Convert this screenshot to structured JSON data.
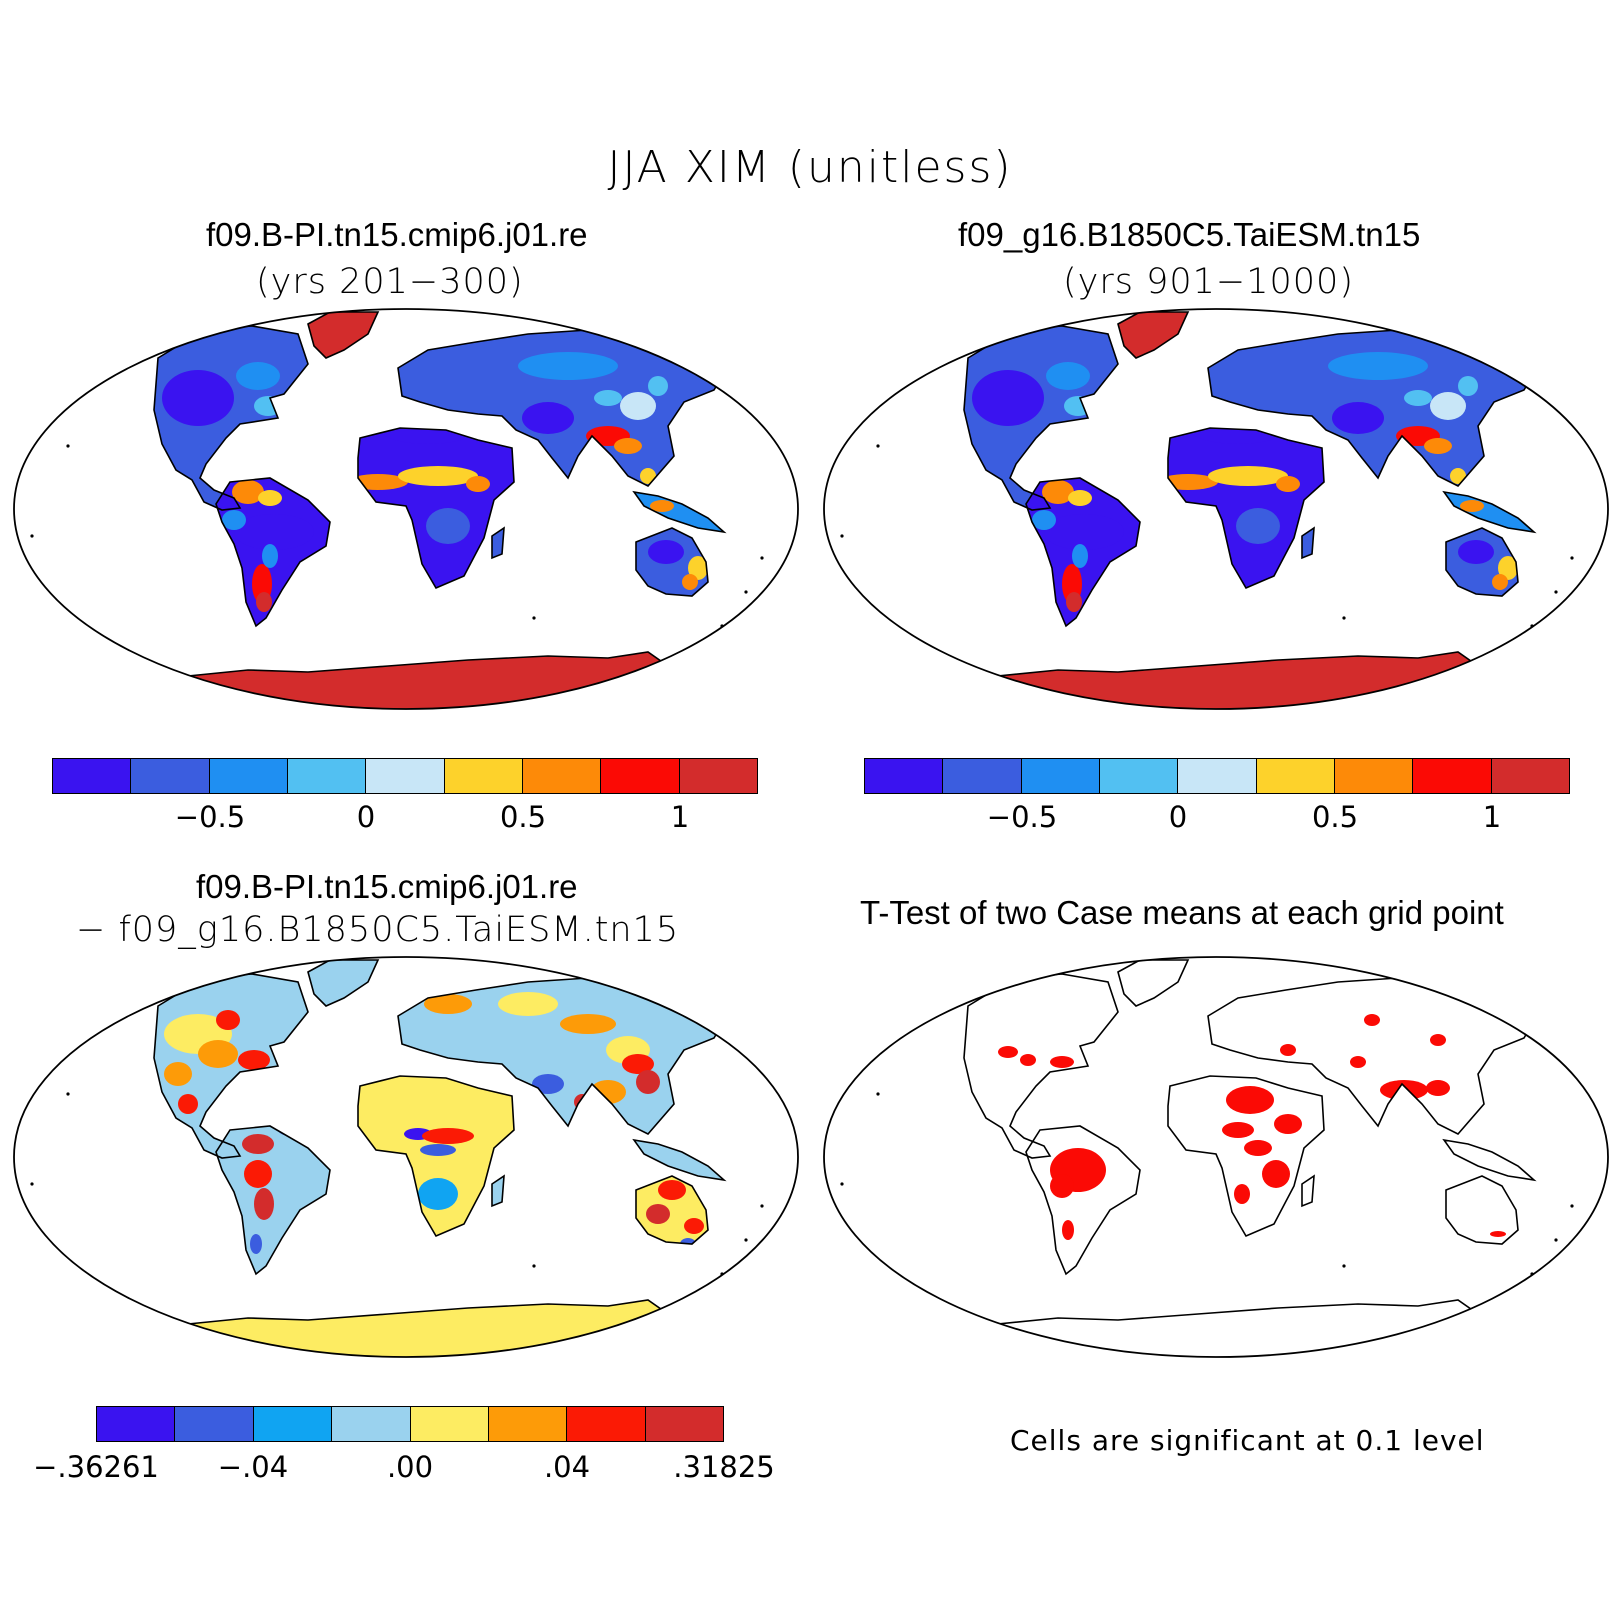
{
  "title": "JJA XIM (unitless)",
  "panels": [
    {
      "title": "f09.B-PI.tn15.cmip6.j01.re",
      "subtitle": "(yrs 201−300)",
      "palette": "abs"
    },
    {
      "title": "f09_g16.B1850C5.TaiESM.tn15",
      "subtitle": "(yrs 901−1000)",
      "palette": "abs"
    },
    {
      "title": "f09.B-PI.tn15.cmip6.j01.re",
      "subtitle": "− f09_g16.B1850C5.TaiESM.tn15",
      "palette": "diff"
    },
    {
      "title": "T-Test of two Case means at each grid point",
      "subtitle": "",
      "palette": "ttest"
    }
  ],
  "colorbar_abs": {
    "colors": [
      "#3a13f0",
      "#3b5ddf",
      "#1f8ff2",
      "#52c0f2",
      "#c8e6f7",
      "#fdd22b",
      "#fd8a08",
      "#fb0a05",
      "#d32c2c"
    ],
    "ticks": [
      "−0.5",
      "0",
      "0.5",
      "1"
    ]
  },
  "colorbar_diff": {
    "colors": [
      "#3a13f0",
      "#3b5ddf",
      "#10a4f2",
      "#9ad2ee",
      "#fdec62",
      "#fd9b08",
      "#fb1a05",
      "#d32c2c"
    ],
    "ticks": [
      "−.36261",
      "−.04",
      ".00",
      ".04",
      ".31825"
    ]
  },
  "ttest_note": "Cells are significant at 0.1 level"
}
